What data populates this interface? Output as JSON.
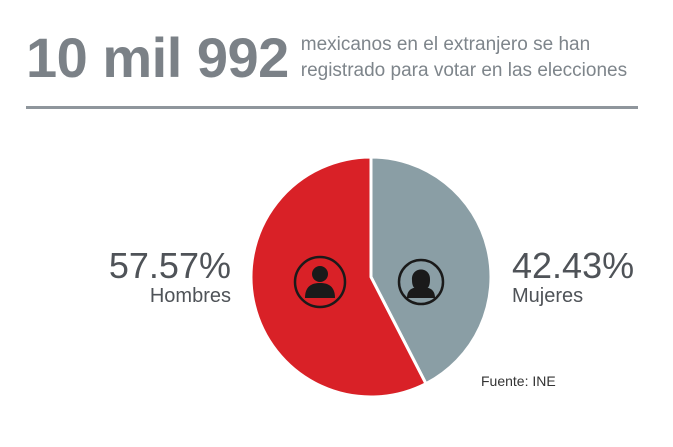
{
  "header": {
    "big_number": "10 mil 992",
    "subtitle_line1": "mexicanos en el extranjero se han",
    "subtitle_line2": "registrado para votar en las elecciones"
  },
  "source": "Fuente: INE",
  "colors": {
    "hombres": "#d92127",
    "mujeres": "#8a9ea5",
    "text": "#4f5358",
    "headline": "#7b8187"
  },
  "chart_data": {
    "type": "pie",
    "title": "10 mil 992",
    "slices": [
      {
        "name": "Hombres",
        "value": 57.57,
        "label": "57.57%",
        "color": "#d92127",
        "icon": "man-icon"
      },
      {
        "name": "Mujeres",
        "value": 42.43,
        "label": "42.43%",
        "color": "#8a9ea5",
        "icon": "woman-icon"
      }
    ],
    "legend": "none"
  }
}
